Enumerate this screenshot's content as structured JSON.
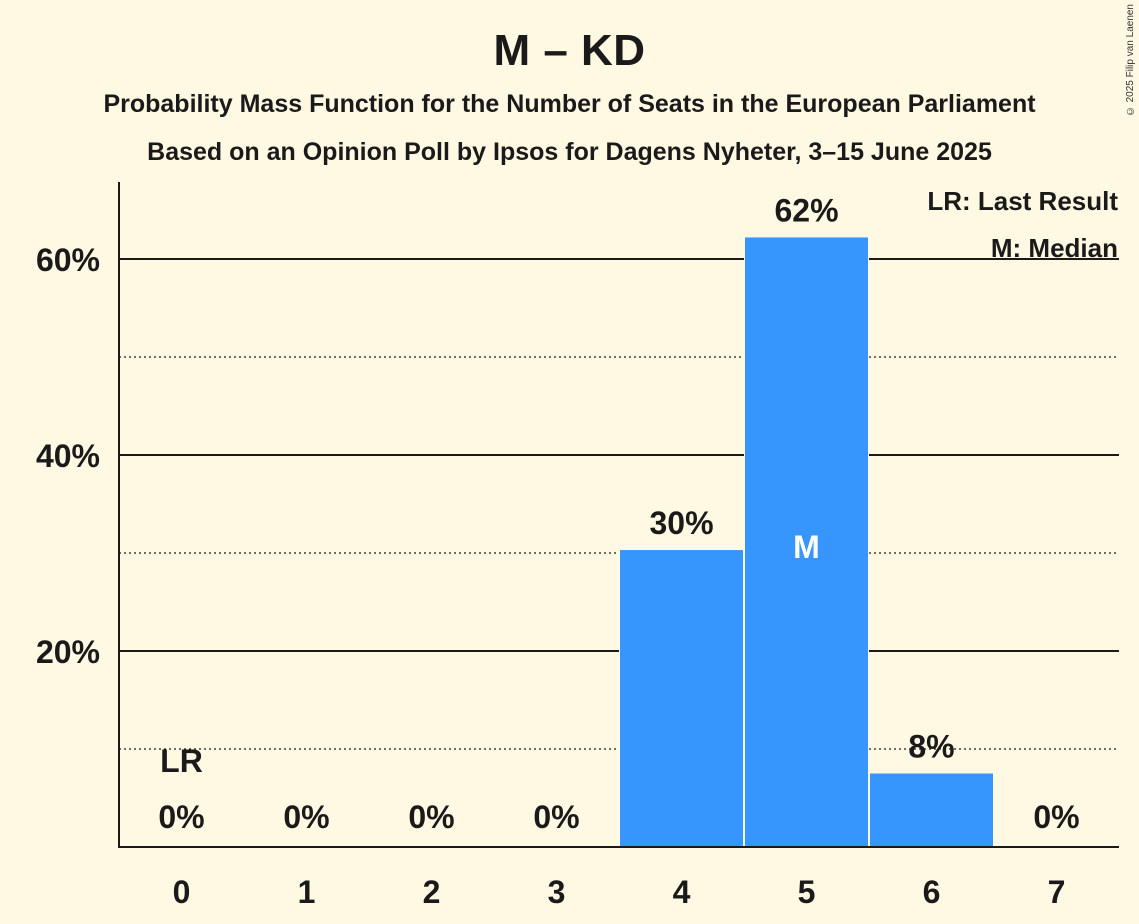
{
  "title": "M – KD",
  "subtitle_1": "Probability Mass Function for the Number of Seats in the European Parliament",
  "subtitle_2": "Based on an Opinion Poll by Ipsos for Dagens Nyheter, 3–15 June 2025",
  "copyright": "© 2025 Filip van Laenen",
  "legend": {
    "last_result": "LR: Last Result",
    "median": "M: Median"
  },
  "colors": {
    "background": "#fff8e2",
    "bar": "#3796fe",
    "text": "#1a1a1a"
  },
  "chart_data": {
    "type": "bar",
    "title": "M – KD",
    "categories": [
      "0",
      "1",
      "2",
      "3",
      "4",
      "5",
      "6",
      "7"
    ],
    "values": [
      0,
      0,
      0,
      0,
      30.3,
      62.2,
      7.5,
      0
    ],
    "labels": [
      "0%",
      "0%",
      "0%",
      "0%",
      "30%",
      "62%",
      "8%",
      "0%"
    ],
    "xlabel": "",
    "ylabel": "",
    "ylim": [
      0,
      68
    ],
    "yticks": [
      20,
      40,
      60
    ],
    "ytick_labels": [
      "20%",
      "40%",
      "60%"
    ],
    "minor_gridlines": [
      10,
      30,
      50
    ],
    "last_result_category": "0",
    "last_result_label": "LR",
    "median_category": "5",
    "median_label": "M"
  }
}
